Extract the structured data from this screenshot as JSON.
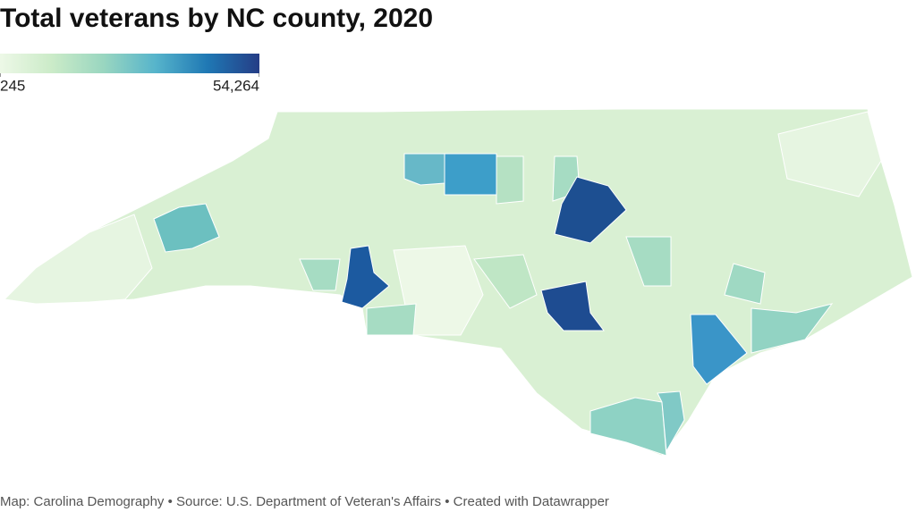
{
  "title": "Total veterans by NC county, 2020",
  "legend": {
    "min": 245,
    "max": {
      "value": 54264,
      "label": "54,264"
    },
    "colors": [
      "#edf8e7",
      "#cbebc8",
      "#99d6c0",
      "#56b4cb",
      "#1f78b4",
      "#253d86"
    ]
  },
  "footer": "Map: Carolina Demography • Source: U.S. Department of Veteran's Affairs • Created with Datawrapper"
}
